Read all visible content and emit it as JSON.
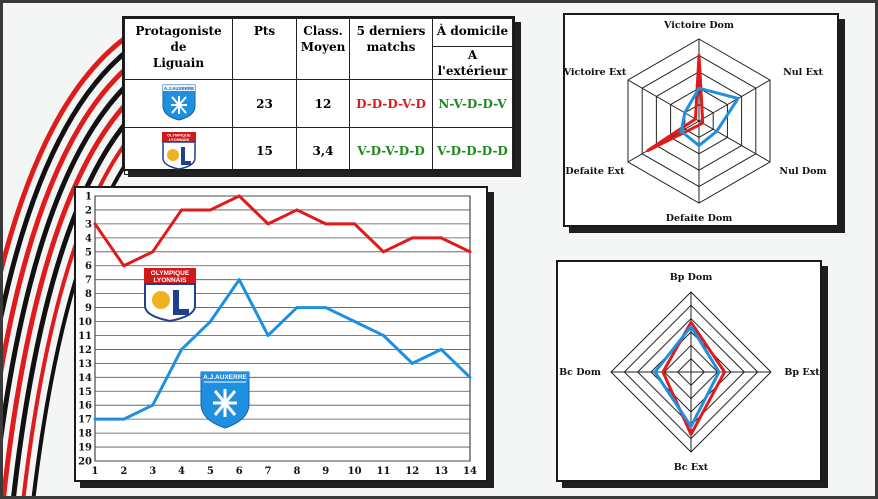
{
  "table": {
    "headers": {
      "protagoniste": "Protagoniste\nde\nLiguain",
      "pts": "Pts",
      "classement": "Class.\nMoyen",
      "derniers": "5 derniers\nmatchs",
      "domicile": "À domicile",
      "exterieur": "A l'extérieur"
    },
    "rows": [
      {
        "team": "A.J.AUXERRE",
        "pts": "23",
        "class": "12",
        "derniers": "D-D-D-V-D",
        "derniers_color": "red",
        "venue": "N-V-D-D-V",
        "venue_color": "green"
      },
      {
        "team": "OLYMPIQUE LYONNAIS",
        "pts": "15",
        "class": "3,4",
        "derniers": "V-D-V-D-D",
        "derniers_color": "green",
        "venue": "V-D-D-D-D",
        "venue_color": "green"
      }
    ]
  },
  "logos": {
    "lyon": [
      "OLYMPIQUE",
      "LYONNAIS"
    ],
    "auxerre": "A.J.AUXERRE"
  },
  "colors": {
    "lyon": "#e01b1b",
    "auxerre": "#1f8fe0"
  },
  "chart_data": [
    {
      "type": "line",
      "x": [
        1,
        2,
        3,
        4,
        5,
        6,
        7,
        8,
        9,
        10,
        11,
        12,
        13,
        14
      ],
      "y_ticks": [
        1,
        2,
        3,
        4,
        5,
        6,
        7,
        8,
        9,
        10,
        11,
        12,
        13,
        14,
        15,
        16,
        17,
        18,
        19,
        20
      ],
      "ylim": [
        1,
        20
      ],
      "y_inverted": true,
      "grid": true,
      "series": [
        {
          "name": "OLYMPIQUE LYONNAIS",
          "color": "#e01b1b",
          "values": [
            3,
            6,
            5,
            2,
            2,
            1,
            3,
            2,
            3,
            3,
            5,
            4,
            4,
            5
          ]
        },
        {
          "name": "A.J.AUXERRE",
          "color": "#1f8fe0",
          "values": [
            17,
            17,
            16,
            12,
            10,
            7,
            11,
            9,
            9,
            10,
            11,
            13,
            12,
            14
          ]
        }
      ]
    },
    {
      "type": "radar",
      "axes": [
        "Victoire Dom",
        "Nul Ext",
        "Nul Dom",
        "Defaite Dom",
        "Defaite Ext",
        "Victoire Ext"
      ],
      "rings": 5,
      "series": [
        {
          "name": "OLYMPIQUE LYONNAIS",
          "color": "#e01b1b",
          "values": [
            0.8,
            0.05,
            0.05,
            0.05,
            0.72,
            0.05
          ]
        },
        {
          "name": "A.J.AUXERRE",
          "color": "#1f8fe0",
          "values": [
            0.4,
            0.55,
            0.25,
            0.3,
            0.25,
            0.2
          ]
        }
      ]
    },
    {
      "type": "radar",
      "axes": [
        "Bp Dom",
        "Bp Ext",
        "Bc Ext",
        "Bc Dom"
      ],
      "rings": 6,
      "series": [
        {
          "name": "OLYMPIQUE LYONNAIS",
          "color": "#e01b1b",
          "values": [
            0.62,
            0.42,
            0.78,
            0.35
          ]
        },
        {
          "name": "A.J.AUXERRE",
          "color": "#1f8fe0",
          "values": [
            0.57,
            0.35,
            0.68,
            0.45
          ]
        }
      ]
    }
  ]
}
